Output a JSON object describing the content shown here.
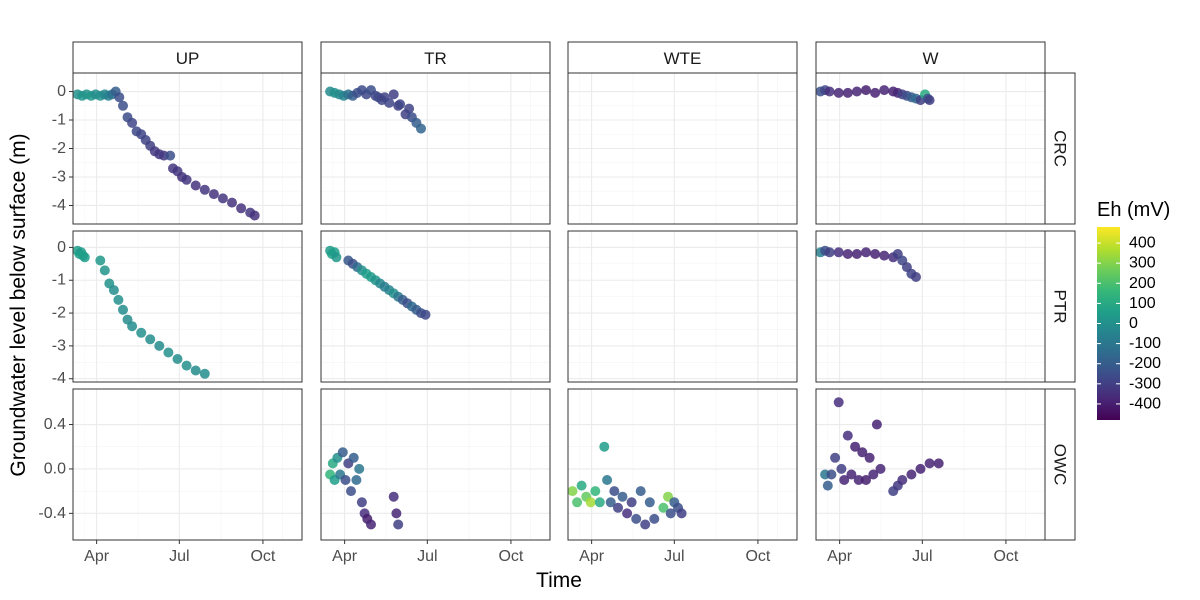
{
  "chart_data": {
    "type": "scatter",
    "title": "",
    "xlabel": "Time",
    "ylabel": "Groundwater level below surface (m)",
    "columns": [
      "UP",
      "TR",
      "WTE",
      "W"
    ],
    "rows": [
      "CRC",
      "PTR",
      "OWC"
    ],
    "x_ticks": [
      "Apr",
      "Jul",
      "Oct"
    ],
    "x_tick_days": [
      91,
      182,
      274
    ],
    "x_range_days": [
      65,
      317
    ],
    "row_scales": {
      "CRC": {
        "ylim": [
          -4.65,
          0.65
        ],
        "ticks": [
          0,
          -1,
          -2,
          -3,
          -4
        ],
        "tick_labels": [
          "0",
          "-1",
          "-2",
          "-3",
          "-4"
        ]
      },
      "PTR": {
        "ylim": [
          -4.1,
          0.5
        ],
        "ticks": [
          0,
          -1,
          -2,
          -3,
          -4
        ],
        "tick_labels": [
          "0",
          "-1",
          "-2",
          "-3",
          "-4"
        ]
      },
      "OWC": {
        "ylim": [
          -0.64,
          0.72
        ],
        "ticks": [
          0.4,
          0.0,
          -0.4
        ],
        "tick_labels": [
          "0.4",
          "0.0",
          "-0.4"
        ]
      }
    },
    "legend": {
      "title": "Eh (mV)",
      "position": "right",
      "range": [
        -480,
        480
      ],
      "breaks": [
        400,
        300,
        200,
        100,
        0,
        -100,
        -200,
        -300,
        -400
      ],
      "labels": [
        "400",
        "300",
        "200",
        "100",
        "0",
        "-100",
        "-200",
        "-300",
        "-400"
      ],
      "colormap": "viridis"
    },
    "grid": true,
    "series": [
      {
        "col": "UP",
        "row": "CRC",
        "points": [
          [
            70,
            -0.1,
            0
          ],
          [
            75,
            -0.15,
            20
          ],
          [
            80,
            -0.1,
            10
          ],
          [
            85,
            -0.15,
            30
          ],
          [
            90,
            -0.1,
            -10
          ],
          [
            95,
            -0.15,
            0
          ],
          [
            100,
            -0.1,
            -40
          ],
          [
            104,
            -0.15,
            -60
          ],
          [
            108,
            -0.1,
            -120
          ],
          [
            112,
            0,
            -200
          ],
          [
            116,
            -0.2,
            -250
          ],
          [
            120,
            -0.5,
            -250
          ],
          [
            125,
            -0.9,
            -260
          ],
          [
            130,
            -1.1,
            -280
          ],
          [
            135,
            -1.4,
            -270
          ],
          [
            140,
            -1.5,
            -280
          ],
          [
            145,
            -1.7,
            -290
          ],
          [
            150,
            -1.9,
            -300
          ],
          [
            155,
            -2.1,
            -320
          ],
          [
            160,
            -2.2,
            -330
          ],
          [
            165,
            -2.25,
            -320
          ],
          [
            172,
            -2.25,
            -250
          ],
          [
            175,
            -2.7,
            -330
          ],
          [
            180,
            -2.8,
            -330
          ],
          [
            185,
            -3.0,
            -340
          ],
          [
            190,
            -3.1,
            -330
          ],
          [
            200,
            -3.3,
            -340
          ],
          [
            210,
            -3.45,
            -330
          ],
          [
            220,
            -3.6,
            -340
          ],
          [
            230,
            -3.75,
            -330
          ],
          [
            240,
            -3.9,
            -340
          ],
          [
            250,
            -4.1,
            -340
          ],
          [
            260,
            -4.25,
            -330
          ],
          [
            265,
            -4.35,
            -340
          ]
        ]
      },
      {
        "col": "TR",
        "row": "CRC",
        "points": [
          [
            75,
            0,
            -20
          ],
          [
            80,
            -0.05,
            0
          ],
          [
            85,
            -0.1,
            -20
          ],
          [
            90,
            -0.15,
            -50
          ],
          [
            95,
            -0.1,
            -120
          ],
          [
            100,
            -0.15,
            -200
          ],
          [
            105,
            -0.05,
            -250
          ],
          [
            110,
            0.05,
            -260
          ],
          [
            115,
            -0.1,
            -270
          ],
          [
            120,
            0.05,
            -250
          ],
          [
            125,
            -0.15,
            -280
          ],
          [
            128,
            -0.2,
            -270
          ],
          [
            132,
            -0.3,
            -280
          ],
          [
            135,
            -0.2,
            -290
          ],
          [
            140,
            -0.4,
            -280
          ],
          [
            145,
            -0.1,
            -300
          ],
          [
            150,
            -0.5,
            -300
          ],
          [
            152,
            -0.45,
            -280
          ],
          [
            158,
            -0.8,
            -300
          ],
          [
            162,
            -0.6,
            -290
          ],
          [
            165,
            -0.9,
            -250
          ],
          [
            170,
            -1.1,
            -200
          ],
          [
            175,
            -1.3,
            -170
          ]
        ]
      },
      {
        "col": "W",
        "row": "CRC",
        "points": [
          [
            70,
            0,
            -250
          ],
          [
            75,
            0.05,
            -280
          ],
          [
            80,
            0.0,
            -350
          ],
          [
            90,
            -0.05,
            -380
          ],
          [
            100,
            -0.05,
            -390
          ],
          [
            110,
            0.0,
            -380
          ],
          [
            120,
            0.05,
            -400
          ],
          [
            130,
            -0.05,
            -390
          ],
          [
            140,
            0.05,
            -380
          ],
          [
            150,
            0.0,
            -390
          ],
          [
            155,
            -0.05,
            -380
          ],
          [
            160,
            -0.1,
            -300
          ],
          [
            165,
            -0.15,
            -260
          ],
          [
            170,
            -0.2,
            -200
          ],
          [
            175,
            -0.25,
            -150
          ],
          [
            180,
            -0.3,
            -300
          ],
          [
            185,
            -0.1,
            100
          ],
          [
            188,
            -0.25,
            -250
          ],
          [
            190,
            -0.3,
            -300
          ]
        ]
      },
      {
        "col": "UP",
        "row": "PTR",
        "points": [
          [
            70,
            -0.1,
            50
          ],
          [
            72,
            -0.2,
            60
          ],
          [
            74,
            -0.15,
            40
          ],
          [
            76,
            -0.25,
            60
          ],
          [
            78,
            -0.3,
            50
          ],
          [
            95,
            -0.4,
            30
          ],
          [
            100,
            -0.7,
            20
          ],
          [
            105,
            -1.1,
            10
          ],
          [
            110,
            -1.3,
            -10
          ],
          [
            115,
            -1.6,
            0
          ],
          [
            120,
            -1.9,
            -10
          ],
          [
            125,
            -2.2,
            -20
          ],
          [
            130,
            -2.4,
            -10
          ],
          [
            140,
            -2.6,
            0
          ],
          [
            150,
            -2.8,
            -10
          ],
          [
            160,
            -3.0,
            -20
          ],
          [
            170,
            -3.2,
            0
          ],
          [
            180,
            -3.4,
            -10
          ],
          [
            190,
            -3.6,
            0
          ],
          [
            200,
            -3.75,
            -20
          ],
          [
            210,
            -3.85,
            -10
          ]
        ]
      },
      {
        "col": "TR",
        "row": "PTR",
        "points": [
          [
            75,
            -0.1,
            40
          ],
          [
            77,
            -0.2,
            60
          ],
          [
            80,
            -0.15,
            50
          ],
          [
            82,
            -0.3,
            30
          ],
          [
            95,
            -0.4,
            -220
          ],
          [
            100,
            -0.5,
            -250
          ],
          [
            105,
            -0.6,
            -150
          ],
          [
            110,
            -0.7,
            0
          ],
          [
            115,
            -0.8,
            50
          ],
          [
            120,
            -0.9,
            40
          ],
          [
            125,
            -1.0,
            20
          ],
          [
            130,
            -1.1,
            -30
          ],
          [
            135,
            -1.2,
            -80
          ],
          [
            140,
            -1.3,
            -50
          ],
          [
            145,
            -1.4,
            0
          ],
          [
            150,
            -1.5,
            -100
          ],
          [
            155,
            -1.6,
            -200
          ],
          [
            160,
            -1.7,
            -250
          ],
          [
            165,
            -1.8,
            -150
          ],
          [
            170,
            -1.9,
            -200
          ],
          [
            175,
            -2.0,
            -250
          ],
          [
            180,
            -2.05,
            -270
          ]
        ]
      },
      {
        "col": "W",
        "row": "PTR",
        "points": [
          [
            70,
            -0.15,
            -60
          ],
          [
            75,
            -0.1,
            -250
          ],
          [
            80,
            -0.15,
            -300
          ],
          [
            90,
            -0.15,
            -350
          ],
          [
            100,
            -0.2,
            -380
          ],
          [
            110,
            -0.2,
            -390
          ],
          [
            120,
            -0.15,
            -380
          ],
          [
            130,
            -0.2,
            -390
          ],
          [
            140,
            -0.25,
            -380
          ],
          [
            150,
            -0.3,
            -350
          ],
          [
            155,
            -0.2,
            -300
          ],
          [
            160,
            -0.4,
            -280
          ],
          [
            165,
            -0.6,
            -300
          ],
          [
            170,
            -0.8,
            -290
          ],
          [
            175,
            -0.9,
            -300
          ]
        ]
      },
      {
        "col": "TR",
        "row": "OWC",
        "points": [
          [
            75,
            -0.05,
            150
          ],
          [
            78,
            0.05,
            100
          ],
          [
            80,
            -0.1,
            50
          ],
          [
            83,
            0.1,
            0
          ],
          [
            86,
            -0.05,
            -100
          ],
          [
            89,
            0.15,
            -200
          ],
          [
            92,
            -0.1,
            -250
          ],
          [
            95,
            0.05,
            -300
          ],
          [
            98,
            -0.2,
            -250
          ],
          [
            101,
            0.1,
            -200
          ],
          [
            104,
            -0.1,
            -150
          ],
          [
            107,
            0.0,
            -100
          ],
          [
            110,
            -0.3,
            -300
          ],
          [
            113,
            -0.4,
            -350
          ],
          [
            116,
            -0.45,
            -400
          ],
          [
            120,
            -0.5,
            -380
          ],
          [
            145,
            -0.25,
            -350
          ],
          [
            148,
            -0.4,
            -380
          ],
          [
            150,
            -0.5,
            -300
          ]
        ]
      },
      {
        "col": "WTE",
        "row": "OWC",
        "points": [
          [
            70,
            -0.2,
            300
          ],
          [
            75,
            -0.3,
            200
          ],
          [
            80,
            -0.15,
            100
          ],
          [
            85,
            -0.25,
            250
          ],
          [
            90,
            -0.3,
            350
          ],
          [
            95,
            -0.2,
            150
          ],
          [
            100,
            -0.3,
            100
          ],
          [
            105,
            0.2,
            50
          ],
          [
            108,
            -0.1,
            -100
          ],
          [
            112,
            -0.3,
            -200
          ],
          [
            116,
            -0.2,
            -250
          ],
          [
            120,
            -0.35,
            -300
          ],
          [
            125,
            -0.25,
            -200
          ],
          [
            130,
            -0.4,
            -350
          ],
          [
            135,
            -0.3,
            -300
          ],
          [
            140,
            -0.45,
            -250
          ],
          [
            145,
            -0.2,
            -200
          ],
          [
            150,
            -0.5,
            -300
          ],
          [
            155,
            -0.3,
            -200
          ],
          [
            160,
            -0.45,
            -250
          ],
          [
            170,
            -0.35,
            200
          ],
          [
            175,
            -0.25,
            300
          ],
          [
            178,
            -0.4,
            -250
          ],
          [
            182,
            -0.3,
            -200
          ],
          [
            186,
            -0.35,
            -250
          ],
          [
            190,
            -0.4,
            -300
          ]
        ]
      },
      {
        "col": "W",
        "row": "OWC",
        "points": [
          [
            75,
            -0.05,
            -100
          ],
          [
            78,
            -0.15,
            -200
          ],
          [
            82,
            -0.05,
            -250
          ],
          [
            86,
            0.1,
            -300
          ],
          [
            90,
            0.6,
            -350
          ],
          [
            93,
            0.0,
            -300
          ],
          [
            96,
            -0.1,
            -380
          ],
          [
            100,
            0.3,
            -350
          ],
          [
            104,
            -0.05,
            -380
          ],
          [
            108,
            0.2,
            -390
          ],
          [
            112,
            -0.1,
            -380
          ],
          [
            116,
            0.15,
            -390
          ],
          [
            120,
            -0.1,
            -400
          ],
          [
            124,
            0.1,
            -390
          ],
          [
            128,
            -0.05,
            -380
          ],
          [
            132,
            0.4,
            -390
          ],
          [
            136,
            0.0,
            -380
          ],
          [
            150,
            -0.2,
            -300
          ],
          [
            155,
            -0.15,
            -320
          ],
          [
            160,
            -0.1,
            -350
          ],
          [
            170,
            -0.05,
            -380
          ],
          [
            180,
            0.0,
            -390
          ],
          [
            190,
            0.05,
            -380
          ],
          [
            200,
            0.05,
            -390
          ]
        ]
      }
    ]
  }
}
